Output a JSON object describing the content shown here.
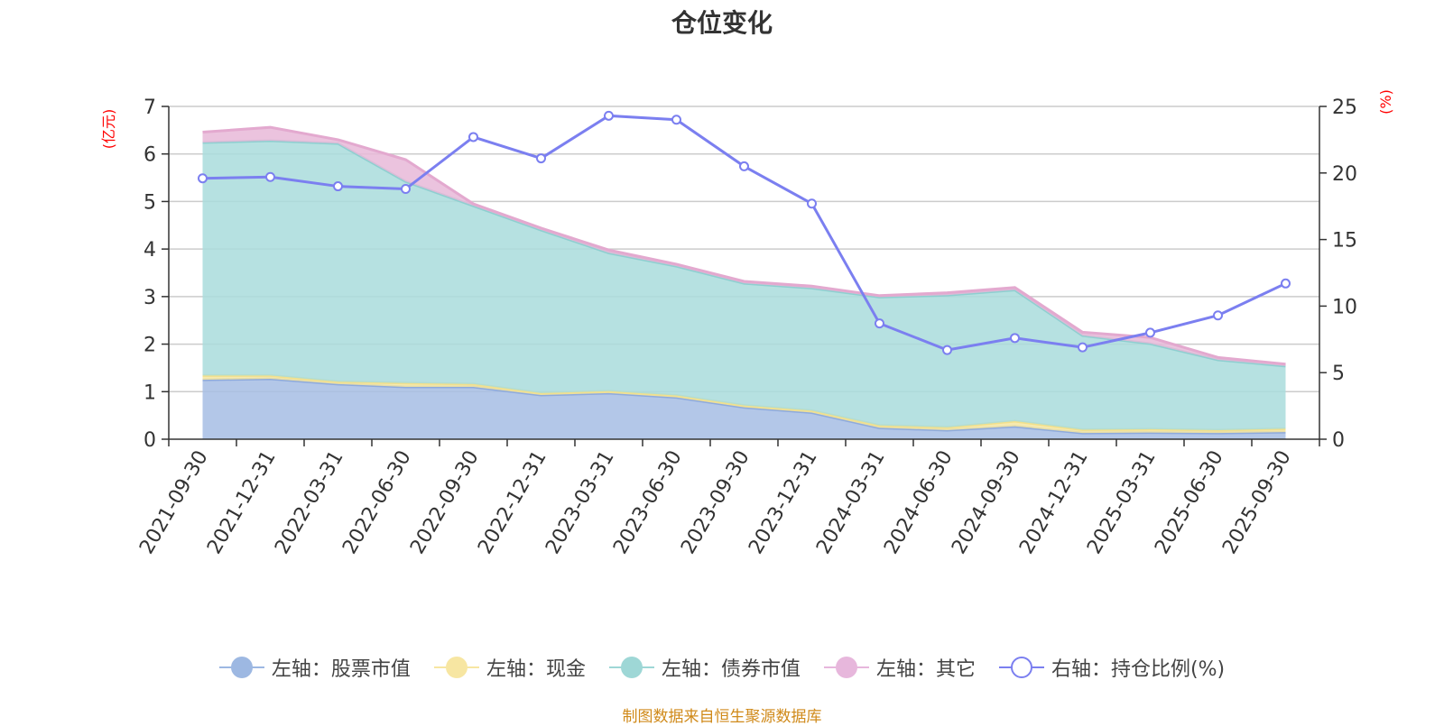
{
  "title": "仓位变化",
  "source": "制图数据来自恒生聚源数据库",
  "colors": {
    "stock": "#a6bde4",
    "stock_line": "#8eaadc",
    "cash": "#f6e6a0",
    "cash_line": "#f2e08c",
    "bond": "#a9dcdc",
    "bond_line": "#8ecfd0",
    "other": "#e8b8d8",
    "other_line": "#e3a9cf",
    "ratio": "#7b7ff0",
    "axis_unit": "#ff0000",
    "source": "#d08a1a"
  },
  "legend": [
    {
      "key": "stock",
      "label": "左轴：股票市值",
      "color": "#9db8e2",
      "type": "area"
    },
    {
      "key": "cash",
      "label": "左轴：现金",
      "color": "#f7e6a2",
      "type": "area"
    },
    {
      "key": "bond",
      "label": "左轴：债券市值",
      "color": "#9ed7d6",
      "type": "area"
    },
    {
      "key": "other",
      "label": "左轴：其它",
      "color": "#e7b7dc",
      "type": "area"
    },
    {
      "key": "ratio",
      "label": "右轴：持仓比例(%)",
      "color": "#7b7ff0",
      "type": "line"
    }
  ],
  "chart_data": {
    "type": "area",
    "title": "仓位变化",
    "categories": [
      "2021-09-30",
      "2021-12-31",
      "2022-03-31",
      "2022-06-30",
      "2022-09-30",
      "2022-12-31",
      "2023-03-31",
      "2023-06-30",
      "2023-09-30",
      "2023-12-31",
      "2024-03-31",
      "2024-06-30",
      "2024-09-30",
      "2024-12-31",
      "2025-03-31",
      "2025-06-30",
      "2025-09-30"
    ],
    "left_axis": {
      "unit": "(亿元)",
      "ylim": [
        0,
        7
      ],
      "ticks": [
        0,
        1,
        2,
        3,
        4,
        5,
        6,
        7
      ]
    },
    "right_axis": {
      "unit": "(%)",
      "ylim": [
        0,
        25
      ],
      "ticks": [
        0,
        5,
        10,
        15,
        20,
        25
      ]
    },
    "stacked": true,
    "series": [
      {
        "name": "左轴：股票市值",
        "axis": "left",
        "values": [
          1.25,
          1.27,
          1.16,
          1.1,
          1.1,
          0.93,
          0.97,
          0.88,
          0.67,
          0.56,
          0.24,
          0.19,
          0.27,
          0.13,
          0.14,
          0.13,
          0.15
        ]
      },
      {
        "name": "左轴：现金",
        "axis": "left",
        "values": [
          0.09,
          0.07,
          0.05,
          0.08,
          0.06,
          0.04,
          0.04,
          0.04,
          0.04,
          0.04,
          0.05,
          0.06,
          0.11,
          0.07,
          0.07,
          0.06,
          0.07
        ]
      },
      {
        "name": "左轴：债券市值",
        "axis": "left",
        "values": [
          4.9,
          4.94,
          5.01,
          4.24,
          3.75,
          3.43,
          2.91,
          2.72,
          2.57,
          2.58,
          2.7,
          2.78,
          2.76,
          1.98,
          1.8,
          1.48,
          1.32
        ]
      },
      {
        "name": "左轴：其它",
        "axis": "left",
        "values": [
          0.22,
          0.28,
          0.08,
          0.46,
          0.04,
          0.04,
          0.06,
          0.04,
          0.04,
          0.04,
          0.03,
          0.05,
          0.05,
          0.07,
          0.13,
          0.05,
          0.04
        ]
      },
      {
        "name": "右轴：持仓比例(%)",
        "axis": "right",
        "type": "line",
        "values": [
          19.6,
          19.7,
          19.0,
          18.8,
          22.7,
          21.1,
          24.3,
          24.0,
          20.5,
          17.7,
          8.7,
          6.7,
          7.6,
          6.9,
          8.0,
          9.3,
          11.7
        ]
      }
    ],
    "grid": true,
    "legend_position": "bottom"
  }
}
